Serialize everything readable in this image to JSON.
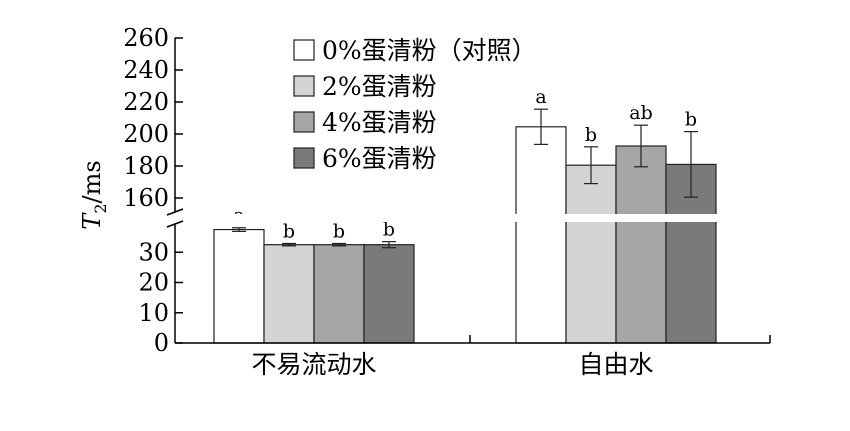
{
  "chart_data": {
    "type": "bar",
    "categories": [
      "不易流动水",
      "自由水"
    ],
    "series": [
      {
        "name": "0%蛋清粉（对照）",
        "color": "#ffffff",
        "values": [
          37.5,
          204.5
        ],
        "errors": [
          0.6,
          11.0
        ],
        "letters": [
          "a",
          "a"
        ]
      },
      {
        "name": "2%蛋清粉",
        "color": "#d4d4d4",
        "values": [
          32.5,
          180.5
        ],
        "errors": [
          0.4,
          11.5
        ],
        "letters": [
          "b",
          "b"
        ]
      },
      {
        "name": "4%蛋清粉",
        "color": "#a6a6a6",
        "values": [
          32.5,
          192.5
        ],
        "errors": [
          0.4,
          13.0
        ],
        "letters": [
          "b",
          "ab"
        ]
      },
      {
        "name": "6%蛋清粉",
        "color": "#7a7a7a",
        "values": [
          32.5,
          181.0
        ],
        "errors": [
          1.0,
          20.5
        ],
        "letters": [
          "b",
          "b"
        ]
      }
    ],
    "ylabel_main": "T",
    "ylabel_sub": "2",
    "ylabel_unit": "/ms",
    "xlabel": "",
    "y_lower_range": [
      0,
      40
    ],
    "y_upper_range": [
      150,
      260
    ],
    "y_lower_ticks": [
      "0",
      "10",
      "20",
      "30"
    ],
    "y_upper_ticks": [
      "160",
      "180",
      "200",
      "220",
      "240",
      "260"
    ],
    "axis_break": true,
    "legend_position": "top-center",
    "grid": false
  }
}
